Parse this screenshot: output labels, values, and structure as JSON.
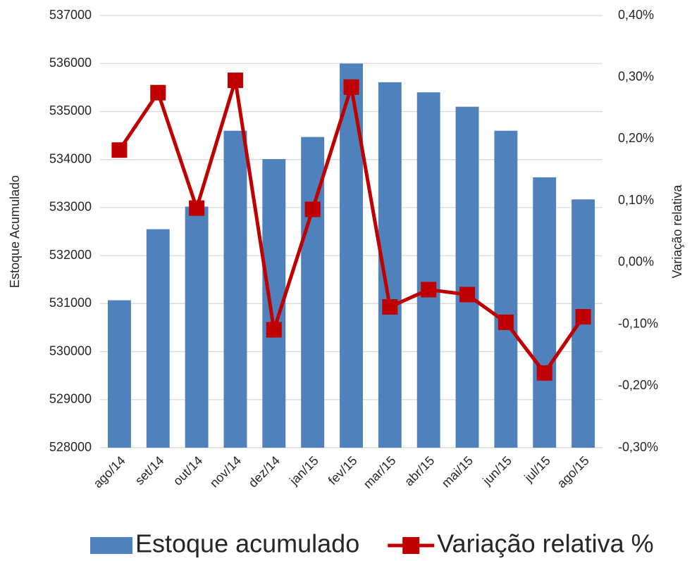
{
  "chart_data": {
    "type": "combo",
    "categories": [
      "ago/14",
      "set/14",
      "out/14",
      "nov/14",
      "dez/14",
      "jan/15",
      "fev/15",
      "mar/15",
      "abr/15",
      "mai/15",
      "jun/15",
      "jul/15",
      "ago/15"
    ],
    "series": [
      {
        "name": "Estoque acumulado",
        "type": "bar",
        "color": "#4f81bd",
        "values": [
          531070,
          532550,
          533020,
          534600,
          534010,
          534470,
          536000,
          535610,
          535400,
          535100,
          534600,
          533630,
          533170
        ]
      },
      {
        "name": "Variação relativa %",
        "type": "line",
        "axis": "y2",
        "color": "#c00000",
        "values": [
          0.182,
          0.275,
          0.088,
          0.295,
          -0.109,
          0.086,
          0.284,
          -0.072,
          -0.044,
          -0.052,
          -0.097,
          -0.179,
          -0.088
        ]
      }
    ],
    "ylabel": "Estoque Acumulado",
    "y2label": "Variação relativa",
    "ylim": [
      528000,
      537000
    ],
    "yticks": [
      528000,
      529000,
      530000,
      531000,
      532000,
      533000,
      534000,
      535000,
      536000,
      537000
    ],
    "y2lim": [
      -0.3,
      0.4
    ],
    "y2ticks": [
      {
        "value": -0.3,
        "label": "-0,30%"
      },
      {
        "value": -0.2,
        "label": "-0,20%"
      },
      {
        "value": -0.1,
        "label": "-0,10%"
      },
      {
        "value": 0,
        "label": "0,00%"
      },
      {
        "value": 0.1,
        "label": "0,10%"
      },
      {
        "value": 0.2,
        "label": "0,20%"
      },
      {
        "value": 0.3,
        "label": "0,30%"
      },
      {
        "value": 0.4,
        "label": "0,40%"
      }
    ],
    "grid": true,
    "legend": "bottom"
  }
}
